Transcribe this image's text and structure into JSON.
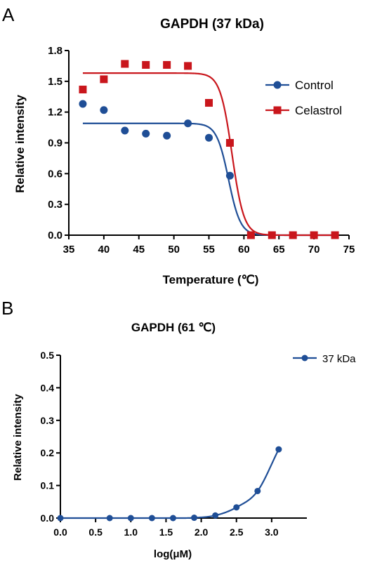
{
  "chart_data": [
    {
      "panel": "A",
      "type": "scatter",
      "title": "GAPDH (37 kDa)",
      "xlabel": "Temperature (℃)",
      "ylabel": "Relative intensity",
      "xlim": [
        35,
        75
      ],
      "ylim": [
        0,
        1.8
      ],
      "xticks": [
        "35",
        "40",
        "45",
        "50",
        "55",
        "60",
        "65",
        "70",
        "75"
      ],
      "yticks": [
        "0.0",
        "0.3",
        "0.6",
        "0.9",
        "1.2",
        "1.5",
        "1.8"
      ],
      "legend_position": "right",
      "series": [
        {
          "name": "Control",
          "color": "#1f4e96",
          "marker": "circle",
          "x": [
            37,
            40,
            43,
            46,
            49,
            52,
            55,
            58,
            61,
            64,
            67,
            70,
            73
          ],
          "y": [
            1.28,
            1.22,
            1.02,
            0.99,
            0.97,
            1.09,
            0.95,
            0.58,
            0.0,
            0.0,
            0.0,
            0.0,
            0.0
          ],
          "fit": {
            "top": 1.09,
            "bottom": 0.0,
            "tm": 57.8,
            "slope": 0.85
          }
        },
        {
          "name": "Celastrol",
          "color": "#c9161c",
          "marker": "square",
          "x": [
            37,
            40,
            43,
            46,
            49,
            52,
            55,
            58,
            61,
            64,
            67,
            70,
            73
          ],
          "y": [
            1.42,
            1.52,
            1.67,
            1.66,
            1.66,
            1.65,
            1.29,
            0.9,
            0.0,
            0.0,
            0.0,
            0.0,
            0.0
          ],
          "fit": {
            "top": 1.58,
            "bottom": 0.0,
            "tm": 58.3,
            "slope": 0.85
          }
        }
      ]
    },
    {
      "panel": "B",
      "type": "line",
      "title": "GAPDH (61 ℃)",
      "xlabel": "log(μM)",
      "ylabel": "Relative intensity",
      "xlim": [
        0,
        3.5
      ],
      "ylim": [
        0,
        0.5
      ],
      "xticks": [
        "0.0",
        "0.5",
        "1.0",
        "1.5",
        "2.0",
        "2.5",
        "3.0"
      ],
      "yticks": [
        "0.0",
        "0.1",
        "0.2",
        "0.3",
        "0.4",
        "0.5"
      ],
      "legend_position": "top-right",
      "series": [
        {
          "name": "37 kDa",
          "color": "#1f4e96",
          "marker": "circle",
          "x": [
            0.0,
            0.7,
            1.0,
            1.3,
            1.6,
            1.9,
            2.2,
            2.5,
            2.8,
            3.1
          ],
          "y": [
            0.0,
            0.0,
            0.0,
            0.0,
            0.0,
            0.001,
            0.008,
            0.033,
            0.083,
            0.211
          ]
        }
      ]
    }
  ]
}
